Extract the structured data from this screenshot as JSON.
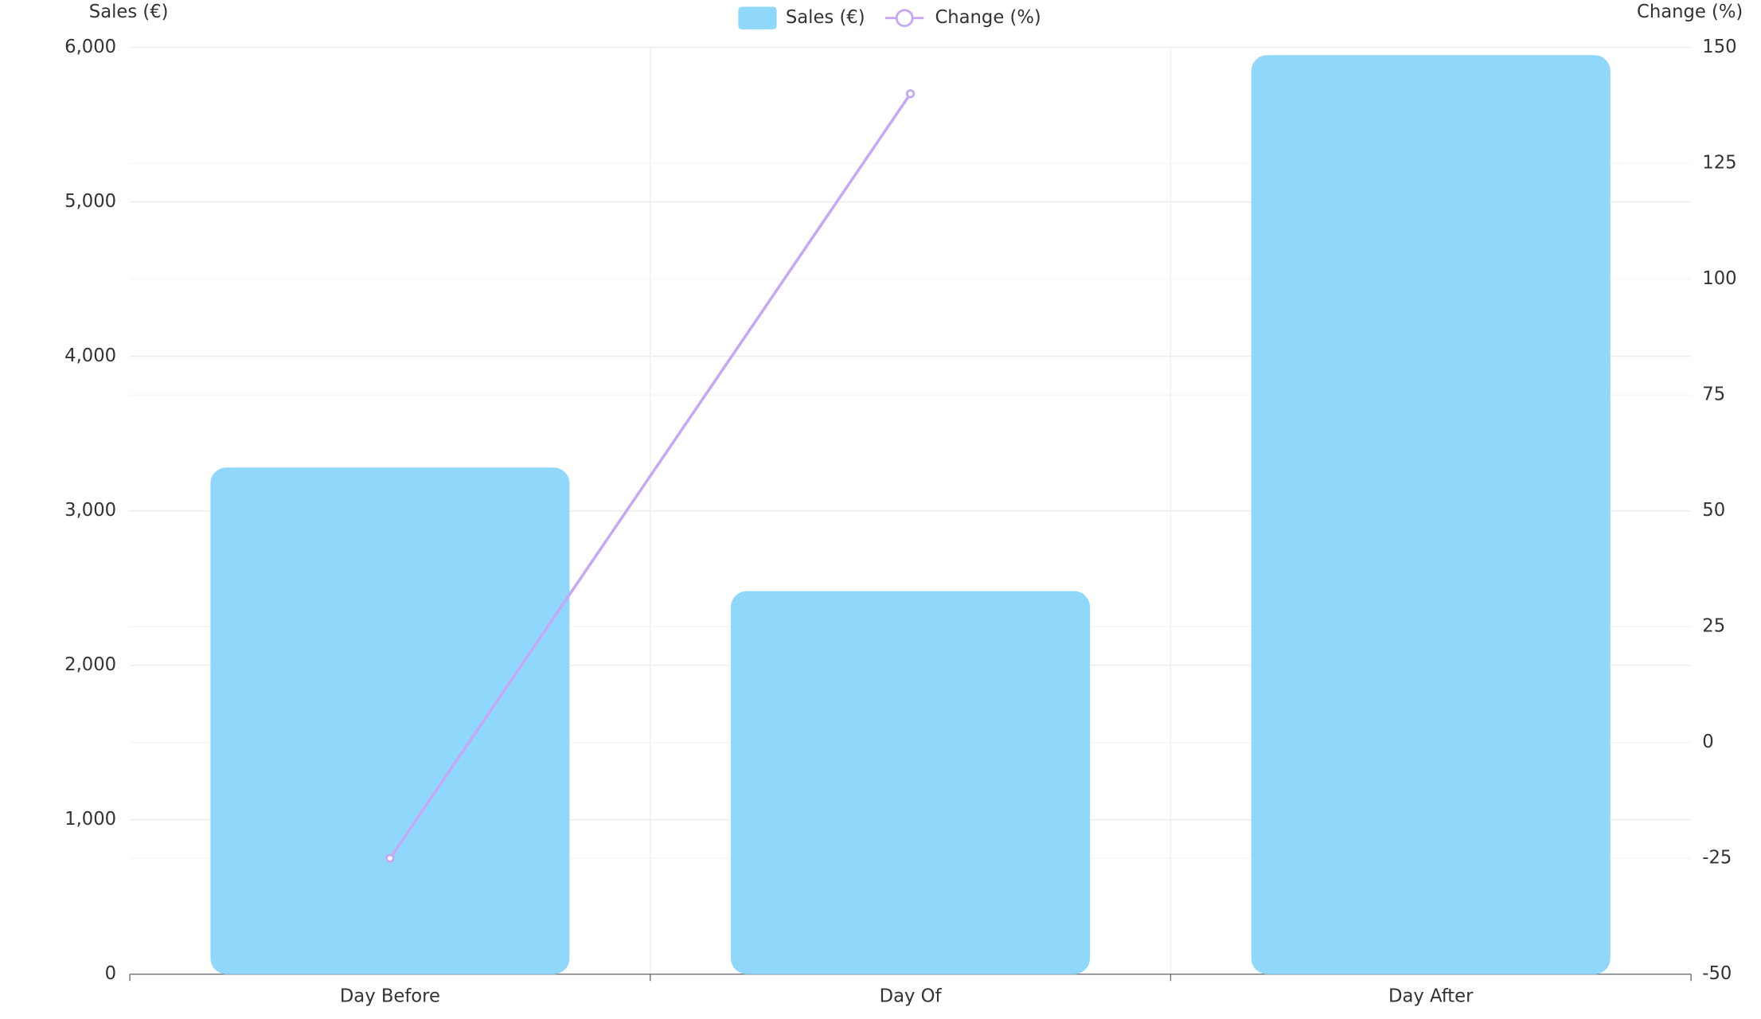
{
  "chart_data": {
    "type": "bar",
    "categories": [
      "Day Before",
      "Day Of",
      "Day After"
    ],
    "series": [
      {
        "name": "Sales (€)",
        "type": "bar",
        "color": "#8fd8fc",
        "values": [
          3280,
          2480,
          5950
        ]
      },
      {
        "name": "Change (%)",
        "type": "line",
        "color": "#c6a9f5",
        "axis": "y2",
        "values": [
          -25,
          140,
          null
        ]
      }
    ],
    "ylabel": "Sales (€)",
    "y2label": "Change (%)",
    "ylim": [
      0,
      6000
    ],
    "yticks": [
      0,
      {
        "value": 1000,
        "label": "1,000"
      },
      {
        "value": 2000,
        "label": "2,000"
      },
      {
        "value": 3000,
        "label": "3,000"
      },
      {
        "value": 4000,
        "label": "4,000"
      },
      {
        "value": 5000,
        "label": "5,000"
      },
      {
        "value": 6000,
        "label": "6,000"
      }
    ],
    "y2lim": [
      -50,
      150
    ],
    "y2ticks": [
      -50,
      -25,
      0,
      25,
      50,
      75,
      100,
      125,
      150
    ],
    "grid": true,
    "legend": "top"
  }
}
